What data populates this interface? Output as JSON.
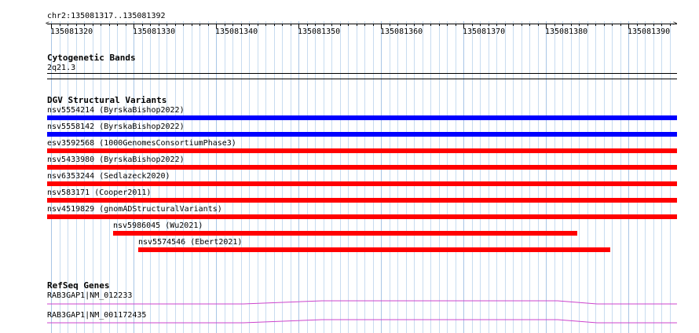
{
  "ruler": {
    "region": "chr2:135081317..135081392",
    "ticks": [
      "135081320",
      "135081330",
      "135081340",
      "135081350",
      "135081360",
      "135081370",
      "135081380",
      "135081390"
    ]
  },
  "cytoband": {
    "title": "Cytogenetic Bands",
    "band": "2q21.3"
  },
  "dgv": {
    "title": "DGV Structural Variants",
    "variants": [
      {
        "label": "nsv5554214 (ByrskaBishop2022)",
        "color": "#0000ff"
      },
      {
        "label": "nsv5558142 (ByrskaBishop2022)",
        "color": "#0000ff"
      },
      {
        "label": "esv3592568 (1000GenomesConsortiumPhase3)",
        "color": "#ff0000"
      },
      {
        "label": "nsv5433980 (ByrskaBishop2022)",
        "color": "#ff0000"
      },
      {
        "label": "nsv6353244 (Sedlazeck2020)",
        "color": "#ff0000"
      },
      {
        "label": "nsv583171 (Cooper2011)",
        "color": "#ff0000"
      },
      {
        "label": "nsv4519829 (gnomADStructuralVariants)",
        "color": "#ff0000"
      },
      {
        "label": "nsv5986045 (Wu2021)",
        "color": "#ff0000"
      },
      {
        "label": "nsv5574546 (Ebert2021)",
        "color": "#ff0000"
      }
    ]
  },
  "refseq": {
    "title": "RefSeq Genes",
    "genes": [
      {
        "label": "RAB3GAP1|NM_012233",
        "color": "#cc44cc"
      },
      {
        "label": "RAB3GAP1|NM_001172435",
        "color": "#cc44cc"
      }
    ]
  }
}
